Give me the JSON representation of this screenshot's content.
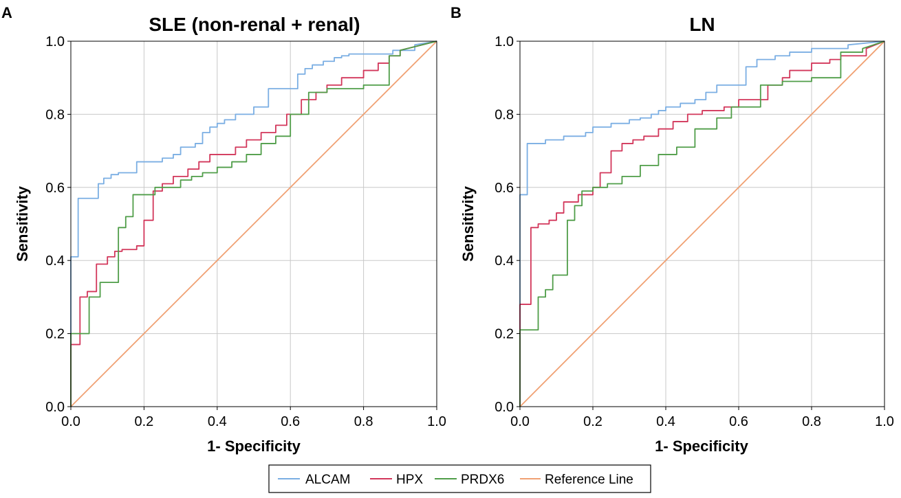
{
  "panels": [
    {
      "letter": "A"
    },
    {
      "letter": "B"
    }
  ],
  "legend": {
    "entries": [
      {
        "name": "ALCAM",
        "color": "#7aaee3"
      },
      {
        "name": "HPX",
        "color": "#d2365a"
      },
      {
        "name": "PRDX6",
        "color": "#4f9d48"
      },
      {
        "name": "Reference Line",
        "color": "#f0a072"
      }
    ]
  },
  "chart_data": [
    {
      "type": "line",
      "title": "SLE (non-renal + renal)",
      "xlabel": "1- Specificity",
      "ylabel": "Sensitivity",
      "xlim": [
        0,
        1
      ],
      "ylim": [
        0,
        1
      ],
      "xticks": [
        "0.0",
        "0.2",
        "0.4",
        "0.6",
        "0.8",
        "1.0"
      ],
      "yticks": [
        "0.0",
        "0.2",
        "0.4",
        "0.6",
        "0.8",
        "1.0"
      ],
      "grid": true,
      "series": [
        {
          "name": "ALCAM",
          "color": "#7aaee3",
          "x": [
            0,
            0,
            0.02,
            0.02,
            0.075,
            0.075,
            0.09,
            0.09,
            0.11,
            0.11,
            0.13,
            0.13,
            0.18,
            0.18,
            0.25,
            0.25,
            0.28,
            0.28,
            0.3,
            0.3,
            0.34,
            0.34,
            0.36,
            0.36,
            0.38,
            0.38,
            0.4,
            0.4,
            0.42,
            0.42,
            0.45,
            0.45,
            0.5,
            0.5,
            0.54,
            0.54,
            0.62,
            0.62,
            0.64,
            0.64,
            0.66,
            0.66,
            0.69,
            0.69,
            0.72,
            0.72,
            0.74,
            0.74,
            0.76,
            0.76,
            0.88,
            0.88,
            0.94,
            0.94,
            1
          ],
          "y": [
            0,
            0.41,
            0.41,
            0.57,
            0.57,
            0.61,
            0.61,
            0.625,
            0.625,
            0.635,
            0.635,
            0.64,
            0.64,
            0.67,
            0.67,
            0.68,
            0.68,
            0.69,
            0.69,
            0.71,
            0.71,
            0.72,
            0.72,
            0.75,
            0.75,
            0.765,
            0.765,
            0.775,
            0.775,
            0.785,
            0.785,
            0.8,
            0.8,
            0.82,
            0.82,
            0.87,
            0.87,
            0.91,
            0.91,
            0.925,
            0.925,
            0.935,
            0.935,
            0.945,
            0.945,
            0.955,
            0.955,
            0.96,
            0.96,
            0.965,
            0.965,
            0.975,
            0.975,
            0.99,
            1
          ]
        },
        {
          "name": "HPX",
          "color": "#d2365a",
          "x": [
            0,
            0,
            0.025,
            0.025,
            0.045,
            0.045,
            0.07,
            0.07,
            0.1,
            0.1,
            0.12,
            0.12,
            0.14,
            0.14,
            0.18,
            0.18,
            0.2,
            0.2,
            0.225,
            0.225,
            0.25,
            0.25,
            0.28,
            0.28,
            0.32,
            0.32,
            0.35,
            0.35,
            0.38,
            0.38,
            0.45,
            0.45,
            0.48,
            0.48,
            0.52,
            0.52,
            0.56,
            0.56,
            0.59,
            0.59,
            0.63,
            0.63,
            0.67,
            0.67,
            0.7,
            0.7,
            0.74,
            0.74,
            0.8,
            0.8,
            0.84,
            0.84,
            0.87,
            0.87,
            0.9,
            0.9,
            1
          ],
          "y": [
            0,
            0.17,
            0.17,
            0.3,
            0.3,
            0.315,
            0.315,
            0.39,
            0.39,
            0.41,
            0.41,
            0.425,
            0.425,
            0.43,
            0.43,
            0.44,
            0.44,
            0.51,
            0.51,
            0.59,
            0.59,
            0.61,
            0.61,
            0.63,
            0.63,
            0.65,
            0.65,
            0.67,
            0.67,
            0.69,
            0.69,
            0.71,
            0.71,
            0.73,
            0.73,
            0.75,
            0.75,
            0.77,
            0.77,
            0.8,
            0.8,
            0.84,
            0.84,
            0.86,
            0.86,
            0.88,
            0.88,
            0.9,
            0.9,
            0.92,
            0.92,
            0.94,
            0.94,
            0.96,
            0.96,
            0.975,
            1
          ]
        },
        {
          "name": "PRDX6",
          "color": "#4f9d48",
          "x": [
            0,
            0,
            0.05,
            0.05,
            0.08,
            0.08,
            0.13,
            0.13,
            0.15,
            0.15,
            0.17,
            0.17,
            0.23,
            0.23,
            0.3,
            0.3,
            0.33,
            0.33,
            0.36,
            0.36,
            0.4,
            0.4,
            0.44,
            0.44,
            0.48,
            0.48,
            0.52,
            0.52,
            0.56,
            0.56,
            0.6,
            0.6,
            0.65,
            0.65,
            0.7,
            0.7,
            0.8,
            0.8,
            0.87,
            0.87,
            0.9,
            0.9,
            1
          ],
          "y": [
            0,
            0.2,
            0.2,
            0.3,
            0.3,
            0.34,
            0.34,
            0.49,
            0.49,
            0.52,
            0.52,
            0.58,
            0.58,
            0.6,
            0.6,
            0.62,
            0.62,
            0.63,
            0.63,
            0.64,
            0.64,
            0.655,
            0.655,
            0.67,
            0.67,
            0.69,
            0.69,
            0.72,
            0.72,
            0.74,
            0.74,
            0.8,
            0.8,
            0.86,
            0.86,
            0.87,
            0.87,
            0.88,
            0.88,
            0.96,
            0.96,
            0.975,
            1
          ]
        },
        {
          "name": "Reference Line",
          "color": "#f0a072",
          "x": [
            0,
            1
          ],
          "y": [
            0,
            1
          ]
        }
      ]
    },
    {
      "type": "line",
      "title": "LN",
      "xlabel": "1- Specificity",
      "ylabel": "Sensitivity",
      "xlim": [
        0,
        1
      ],
      "ylim": [
        0,
        1
      ],
      "xticks": [
        "0.0",
        "0.2",
        "0.4",
        "0.6",
        "0.8",
        "1.0"
      ],
      "yticks": [
        "0.0",
        "0.2",
        "0.4",
        "0.6",
        "0.8",
        "1.0"
      ],
      "grid": true,
      "series": [
        {
          "name": "ALCAM",
          "color": "#7aaee3",
          "x": [
            0,
            0,
            0.02,
            0.02,
            0.07,
            0.07,
            0.12,
            0.12,
            0.18,
            0.18,
            0.2,
            0.2,
            0.25,
            0.25,
            0.3,
            0.3,
            0.33,
            0.33,
            0.36,
            0.36,
            0.38,
            0.38,
            0.4,
            0.4,
            0.44,
            0.44,
            0.48,
            0.48,
            0.51,
            0.51,
            0.54,
            0.54,
            0.62,
            0.62,
            0.65,
            0.65,
            0.7,
            0.7,
            0.74,
            0.74,
            0.8,
            0.8,
            0.9,
            0.9,
            1
          ],
          "y": [
            0,
            0.58,
            0.58,
            0.72,
            0.72,
            0.73,
            0.73,
            0.74,
            0.74,
            0.75,
            0.75,
            0.765,
            0.765,
            0.775,
            0.775,
            0.785,
            0.785,
            0.79,
            0.79,
            0.8,
            0.8,
            0.81,
            0.81,
            0.82,
            0.82,
            0.83,
            0.83,
            0.84,
            0.84,
            0.86,
            0.86,
            0.88,
            0.88,
            0.93,
            0.93,
            0.95,
            0.95,
            0.96,
            0.96,
            0.97,
            0.97,
            0.98,
            0.98,
            0.99,
            1
          ]
        },
        {
          "name": "HPX",
          "color": "#d2365a",
          "x": [
            0,
            0,
            0.03,
            0.03,
            0.05,
            0.05,
            0.08,
            0.08,
            0.1,
            0.1,
            0.12,
            0.12,
            0.16,
            0.16,
            0.2,
            0.2,
            0.22,
            0.22,
            0.25,
            0.25,
            0.28,
            0.28,
            0.31,
            0.31,
            0.34,
            0.34,
            0.38,
            0.38,
            0.42,
            0.42,
            0.46,
            0.46,
            0.5,
            0.5,
            0.56,
            0.56,
            0.6,
            0.6,
            0.68,
            0.68,
            0.72,
            0.72,
            0.74,
            0.74,
            0.8,
            0.8,
            0.85,
            0.85,
            0.88,
            0.88,
            0.95,
            0.95,
            1
          ],
          "y": [
            0,
            0.28,
            0.28,
            0.49,
            0.49,
            0.5,
            0.5,
            0.51,
            0.51,
            0.53,
            0.53,
            0.56,
            0.56,
            0.58,
            0.58,
            0.6,
            0.6,
            0.64,
            0.64,
            0.7,
            0.7,
            0.72,
            0.72,
            0.73,
            0.73,
            0.74,
            0.74,
            0.76,
            0.76,
            0.78,
            0.78,
            0.8,
            0.8,
            0.81,
            0.81,
            0.82,
            0.82,
            0.84,
            0.84,
            0.88,
            0.88,
            0.9,
            0.9,
            0.92,
            0.92,
            0.94,
            0.94,
            0.95,
            0.95,
            0.96,
            0.96,
            0.98,
            1
          ]
        },
        {
          "name": "PRDX6",
          "color": "#4f9d48",
          "x": [
            0,
            0,
            0.05,
            0.05,
            0.07,
            0.07,
            0.09,
            0.09,
            0.13,
            0.13,
            0.15,
            0.15,
            0.17,
            0.17,
            0.2,
            0.2,
            0.24,
            0.24,
            0.28,
            0.28,
            0.33,
            0.33,
            0.38,
            0.38,
            0.43,
            0.43,
            0.48,
            0.48,
            0.54,
            0.54,
            0.58,
            0.58,
            0.66,
            0.66,
            0.72,
            0.72,
            0.8,
            0.8,
            0.88,
            0.88,
            0.94,
            0.94,
            1
          ],
          "y": [
            0,
            0.21,
            0.21,
            0.3,
            0.3,
            0.32,
            0.32,
            0.36,
            0.36,
            0.51,
            0.51,
            0.55,
            0.55,
            0.59,
            0.59,
            0.6,
            0.6,
            0.61,
            0.61,
            0.63,
            0.63,
            0.66,
            0.66,
            0.69,
            0.69,
            0.71,
            0.71,
            0.76,
            0.76,
            0.79,
            0.79,
            0.82,
            0.82,
            0.88,
            0.88,
            0.89,
            0.89,
            0.9,
            0.9,
            0.97,
            0.97,
            0.98,
            1
          ]
        },
        {
          "name": "Reference Line",
          "color": "#f0a072",
          "x": [
            0,
            1
          ],
          "y": [
            0,
            1
          ]
        }
      ]
    }
  ]
}
